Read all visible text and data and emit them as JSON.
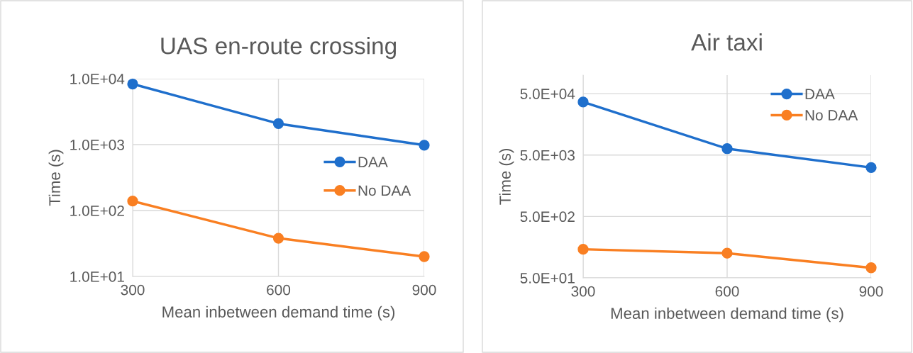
{
  "chart_data": [
    {
      "type": "line",
      "title": "UAS en-route crossing",
      "xlabel": "Mean inbetween demand time (s)",
      "ylabel": "Time (s)",
      "x": [
        300,
        600,
        900
      ],
      "xlim": [
        300,
        900
      ],
      "xticks": [
        300,
        600,
        900
      ],
      "log": "y",
      "ylim": [
        10,
        10000
      ],
      "yticks": [
        {
          "value": 10,
          "label": "1.0E+01"
        },
        {
          "value": 100,
          "label": "1.0E+02"
        },
        {
          "value": 1000,
          "label": "1.0E+03"
        },
        {
          "value": 10000,
          "label": "1.0E+04"
        }
      ],
      "grid": true,
      "legend": "right",
      "marker": "circle",
      "line_style": "solid",
      "series": [
        {
          "name": "DAA",
          "color": "#1f6fcc",
          "values": [
            8300,
            2080,
            980
          ]
        },
        {
          "name": "No DAA",
          "color": "#f97f22",
          "values": [
            139,
            38,
            20
          ]
        }
      ]
    },
    {
      "type": "line",
      "title": "Air taxi",
      "xlabel": "Mean inbetween demand time (s)",
      "ylabel": "Time (s)",
      "x": [
        300,
        600,
        900
      ],
      "xlim": [
        300,
        900
      ],
      "xticks": [
        300,
        600,
        900
      ],
      "log": "y",
      "ylim": [
        50,
        100000
      ],
      "yticks": [
        {
          "value": 50,
          "label": "5.0E+01"
        },
        {
          "value": 500,
          "label": "5.0E+02"
        },
        {
          "value": 5000,
          "label": "5.0E+03"
        },
        {
          "value": 50000,
          "label": "5.0E+04"
        }
      ],
      "grid": true,
      "legend": "top right",
      "marker": "circle",
      "line_style": "solid",
      "series": [
        {
          "name": "DAA",
          "color": "#1f6fcc",
          "values": [
            36500,
            6350,
            3125
          ]
        },
        {
          "name": "No DAA",
          "color": "#f97f22",
          "values": [
            146,
            126,
            73
          ]
        }
      ]
    }
  ]
}
